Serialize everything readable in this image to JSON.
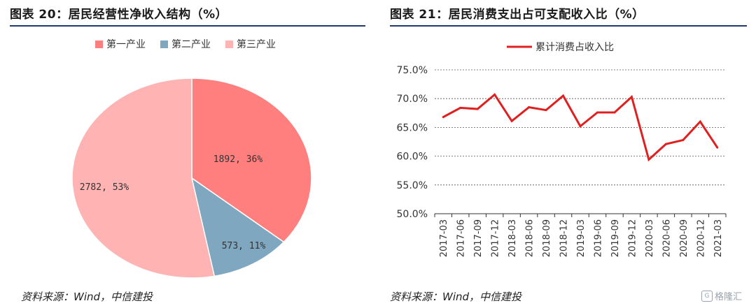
{
  "left": {
    "title": "图表 20：居民经营性净收入结构（%）",
    "source": "资料来源：Wind，中信建投",
    "chart_data": {
      "type": "pie",
      "title": "",
      "slices": [
        {
          "name": "第一产业",
          "value": 1892,
          "percent": 36,
          "label": "1892, 36%",
          "color": "#ff7f7f"
        },
        {
          "name": "第二产业",
          "value": 573,
          "percent": 11,
          "label": "573, 11%",
          "color": "#7fa7bf"
        },
        {
          "name": "第三产业",
          "value": 2782,
          "percent": 53,
          "label": "2782, 53%",
          "color": "#ffb3b3"
        }
      ],
      "legend_position": "top"
    }
  },
  "right": {
    "title": "图表 21：居民消费支出占可支配收入比（%）",
    "source": "资料来源：Wind，中信建投",
    "chart_data": {
      "type": "line",
      "title": "",
      "xlabel": "",
      "ylabel": "",
      "x": [
        "2017-03",
        "2017-06",
        "2017-09",
        "2017-12",
        "2018-03",
        "2018-06",
        "2018-09",
        "2018-12",
        "2019-03",
        "2019-06",
        "2019-09",
        "2019-12",
        "2020-03",
        "2020-06",
        "2020-09",
        "2020-12",
        "2021-03"
      ],
      "series": [
        {
          "name": "累计消费占收入比",
          "color": "#e02020",
          "values": [
            66.8,
            68.4,
            68.2,
            70.7,
            66.1,
            68.5,
            68.0,
            70.5,
            65.2,
            67.6,
            67.6,
            70.3,
            59.4,
            62.1,
            62.8,
            66.0,
            61.5
          ]
        }
      ],
      "ylim": [
        50,
        75
      ],
      "yticks": [
        "50.0%",
        "55.0%",
        "60.0%",
        "65.0%",
        "70.0%",
        "75.0%"
      ],
      "grid": true,
      "legend_position": "top"
    }
  },
  "watermark": {
    "logo": "G",
    "text": "格隆汇"
  }
}
